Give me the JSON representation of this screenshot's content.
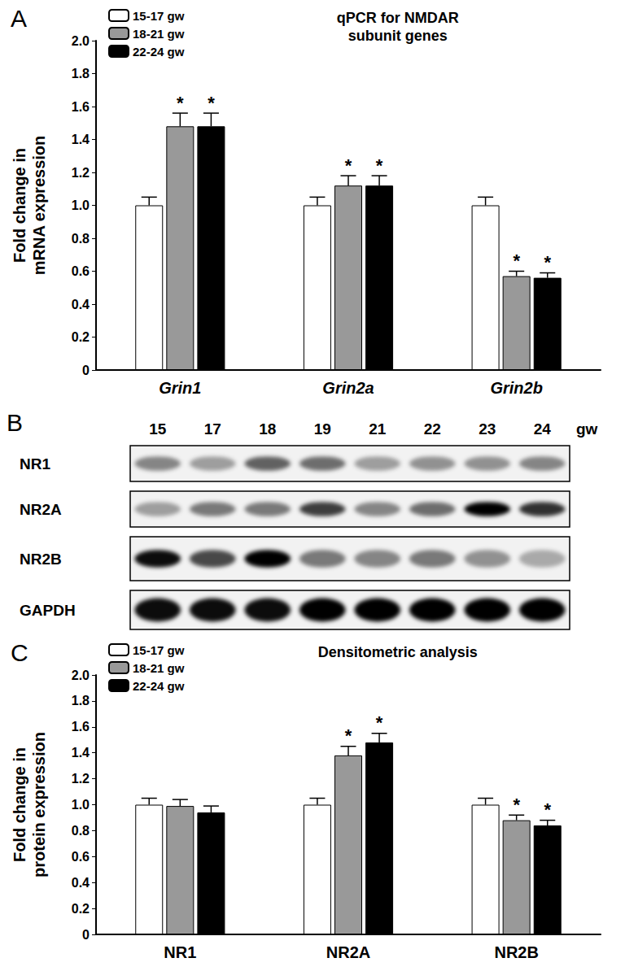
{
  "chart_data": [
    {
      "type": "bar",
      "panel": "A",
      "title": "qPCR for NMDAR\nsubunit genes",
      "ylabel": "Fold change in\nmRNA expression",
      "categories": [
        "Grin1",
        "Grin2a",
        "Grin2b"
      ],
      "series": [
        {
          "name": "15-17 gw",
          "color": "#ffffff",
          "values": [
            1.0,
            1.0,
            1.0
          ],
          "errors": [
            0.05,
            0.05,
            0.05
          ]
        },
        {
          "name": "18-21 gw",
          "color": "#999999",
          "values": [
            1.48,
            1.12,
            0.57
          ],
          "errors": [
            0.08,
            0.06,
            0.03
          ],
          "annotations": [
            "*",
            "*",
            "*"
          ]
        },
        {
          "name": "22-24 gw",
          "color": "#000000",
          "values": [
            1.48,
            1.12,
            0.56
          ],
          "errors": [
            0.08,
            0.06,
            0.03
          ],
          "annotations": [
            "*",
            "*",
            "*"
          ]
        }
      ],
      "ylim": [
        0,
        2
      ],
      "yticks": [
        0,
        0.2,
        0.4,
        0.6,
        0.8,
        {
          "value": 1,
          "label": "1.0"
        },
        1.2,
        1.4,
        1.6,
        1.8,
        {
          "value": 2,
          "label": "2.0"
        }
      ],
      "grid": false,
      "legend": "upper left"
    },
    {
      "type": "blot",
      "panel": "B",
      "lanes": [
        "15",
        "17",
        "18",
        "19",
        "21",
        "22",
        "23",
        "24"
      ],
      "lane_unit": "gw",
      "bands": [
        {
          "name": "NR1",
          "intensity": [
            0.45,
            0.35,
            0.6,
            0.55,
            0.35,
            0.4,
            0.4,
            0.45
          ]
        },
        {
          "name": "NR2A",
          "intensity": [
            0.35,
            0.5,
            0.5,
            0.75,
            0.45,
            0.55,
            1.0,
            0.8
          ]
        },
        {
          "name": "NR2B",
          "intensity": [
            0.95,
            0.7,
            1.0,
            0.5,
            0.45,
            0.5,
            0.4,
            0.3
          ]
        },
        {
          "name": "GAPDH",
          "intensity": [
            0.95,
            0.95,
            0.95,
            1.0,
            1.0,
            1.0,
            1.0,
            1.0
          ]
        }
      ]
    },
    {
      "type": "bar",
      "panel": "C",
      "title": "Densitometric analysis",
      "ylabel": "Fold change in\nprotein expression",
      "categories": [
        "NR1",
        "NR2A",
        "NR2B"
      ],
      "series": [
        {
          "name": "15-17 gw",
          "color": "#ffffff",
          "values": [
            1.0,
            1.0,
            1.0
          ],
          "errors": [
            0.05,
            0.05,
            0.05
          ]
        },
        {
          "name": "18-21 gw",
          "color": "#999999",
          "values": [
            0.99,
            1.38,
            0.88
          ],
          "errors": [
            0.05,
            0.07,
            0.04
          ],
          "annotations": [
            null,
            "*",
            "*"
          ]
        },
        {
          "name": "22-24 gw",
          "color": "#000000",
          "values": [
            0.94,
            1.48,
            0.84
          ],
          "errors": [
            0.05,
            0.07,
            0.04
          ],
          "annotations": [
            null,
            "*",
            "*"
          ]
        }
      ],
      "ylim": [
        0,
        2
      ],
      "yticks": [
        0,
        0.2,
        0.4,
        0.6,
        0.8,
        {
          "value": 1,
          "label": "1.0"
        },
        1.2,
        1.4,
        1.6,
        1.8,
        {
          "value": 2,
          "label": "2.0"
        }
      ],
      "grid": false,
      "legend": "upper left"
    }
  ]
}
